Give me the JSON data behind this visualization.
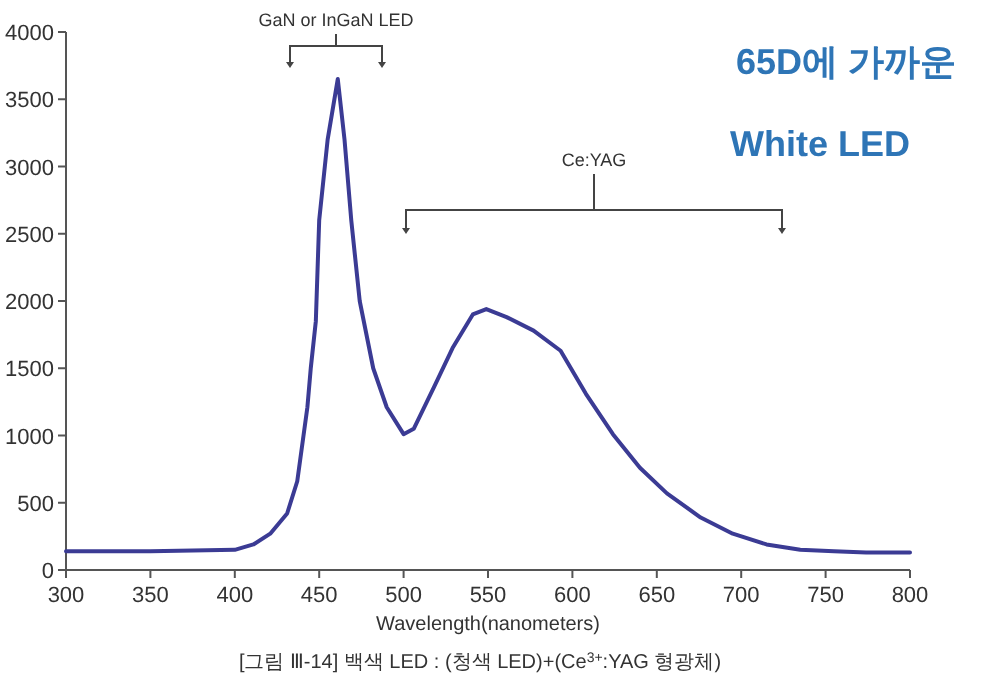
{
  "chart_data": {
    "type": "line",
    "xlabel": "Wavelength(nanometers)",
    "x": [
      300,
      350,
      400,
      411,
      421,
      431,
      437,
      443,
      445,
      448,
      450,
      455,
      461,
      465,
      469,
      474,
      482,
      490,
      500,
      506,
      518,
      529,
      541,
      549,
      561,
      577,
      593,
      608,
      624,
      640,
      656,
      676,
      695,
      715,
      735,
      755,
      774,
      800
    ],
    "series": [
      {
        "color": "#3b3b94",
        "values": [
          140,
          140,
          150,
          190,
          270,
          420,
          660,
          1210,
          1500,
          1850,
          2600,
          3200,
          3650,
          3200,
          2600,
          2000,
          1500,
          1210,
          1010,
          1050,
          1360,
          1650,
          1900,
          1940,
          1880,
          1780,
          1630,
          1310,
          1010,
          760,
          570,
          390,
          270,
          190,
          150,
          140,
          130,
          130
        ]
      }
    ],
    "xlim": [
      300,
      800
    ],
    "xticks": [
      300,
      350,
      400,
      450,
      500,
      550,
      600,
      650,
      700,
      750,
      800
    ],
    "ylim": [
      0,
      4000
    ],
    "yticks": [
      0,
      500,
      1000,
      1500,
      2000,
      2500,
      3000,
      3500,
      4000
    ],
    "grid": false,
    "marker": "none",
    "line_style": "solid",
    "annotations": [
      "GaN or InGaN LED",
      "Ce:YAG",
      "65D에 가까운",
      "White LED",
      "[그림 Ⅲ-14] 백색 LED : (청색 LED)+(Ce$^{3+}$:YAG 형광체)"
    ]
  }
}
